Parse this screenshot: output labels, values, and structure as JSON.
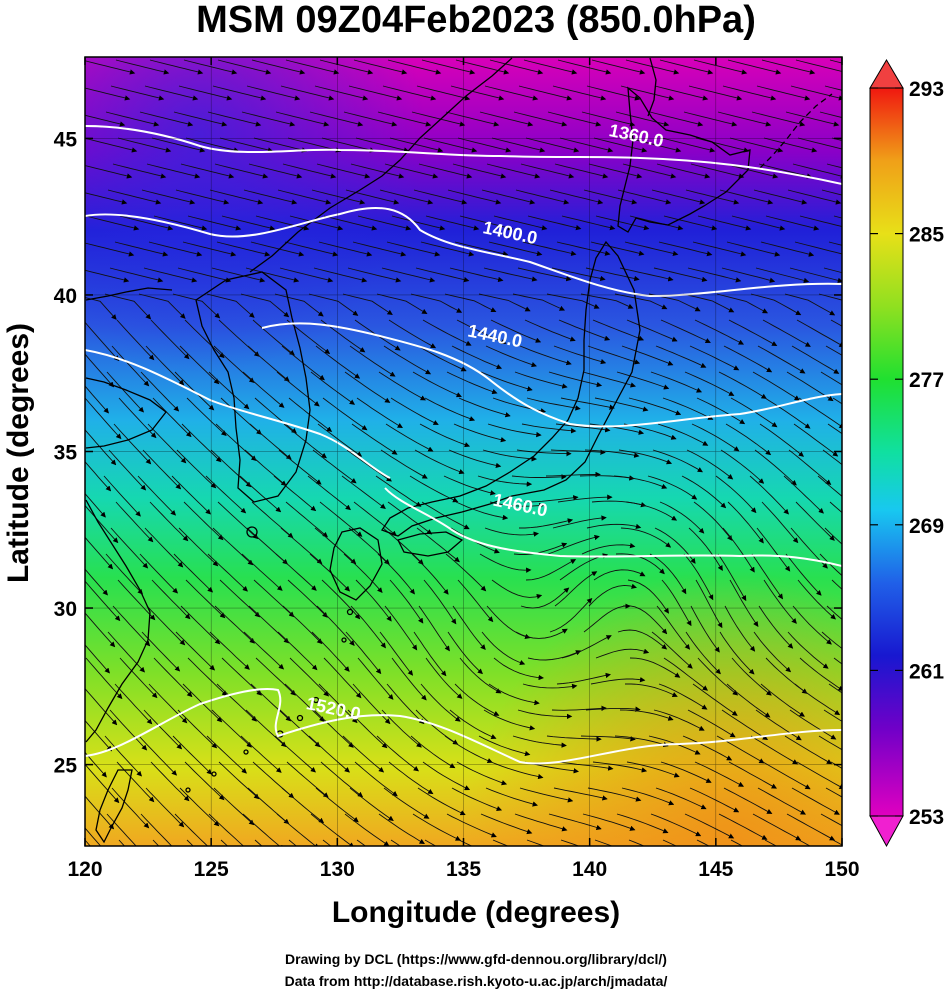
{
  "title": "MSM 09Z04Feb2023 (850.0hPa)",
  "xlabel": "Longitude (degrees)",
  "ylabel": "Latitude  (degrees)",
  "credit_line1": "Drawing by DCL (https://www.gfd-dennou.org/library/dcl/)",
  "credit_line2": "Data from http://database.rish.kyoto-u.ac.jp/arch/jmadata/",
  "map": {
    "lon_range": [
      120,
      150
    ],
    "lat_range": [
      22.4,
      47.6
    ],
    "x_ticks": [
      "120",
      "125",
      "130",
      "135",
      "140",
      "145",
      "150"
    ],
    "x_tick_values": [
      120,
      125,
      130,
      135,
      140,
      145,
      150
    ],
    "y_ticks": [
      "25",
      "30",
      "35",
      "40",
      "45"
    ],
    "y_tick_values": [
      25,
      30,
      35,
      40,
      45
    ],
    "grid": true,
    "contour_labels": [
      {
        "text": "1360.0",
        "lon": 141.8,
        "lat": 44.9
      },
      {
        "text": "1400.0",
        "lon": 136.8,
        "lat": 41.8
      },
      {
        "text": "1440.0",
        "lon": 136.2,
        "lat": 38.5
      },
      {
        "text": "1460.0",
        "lon": 137.2,
        "lat": 33.1
      },
      {
        "text": "1520.0",
        "lon": 129.8,
        "lat": 26.6
      }
    ],
    "colorbar": {
      "labels": [
        "293",
        "285",
        "277",
        "269",
        "261",
        "253"
      ],
      "values": [
        293,
        285,
        277,
        269,
        261,
        253
      ],
      "range": [
        253,
        293
      ]
    }
  }
}
